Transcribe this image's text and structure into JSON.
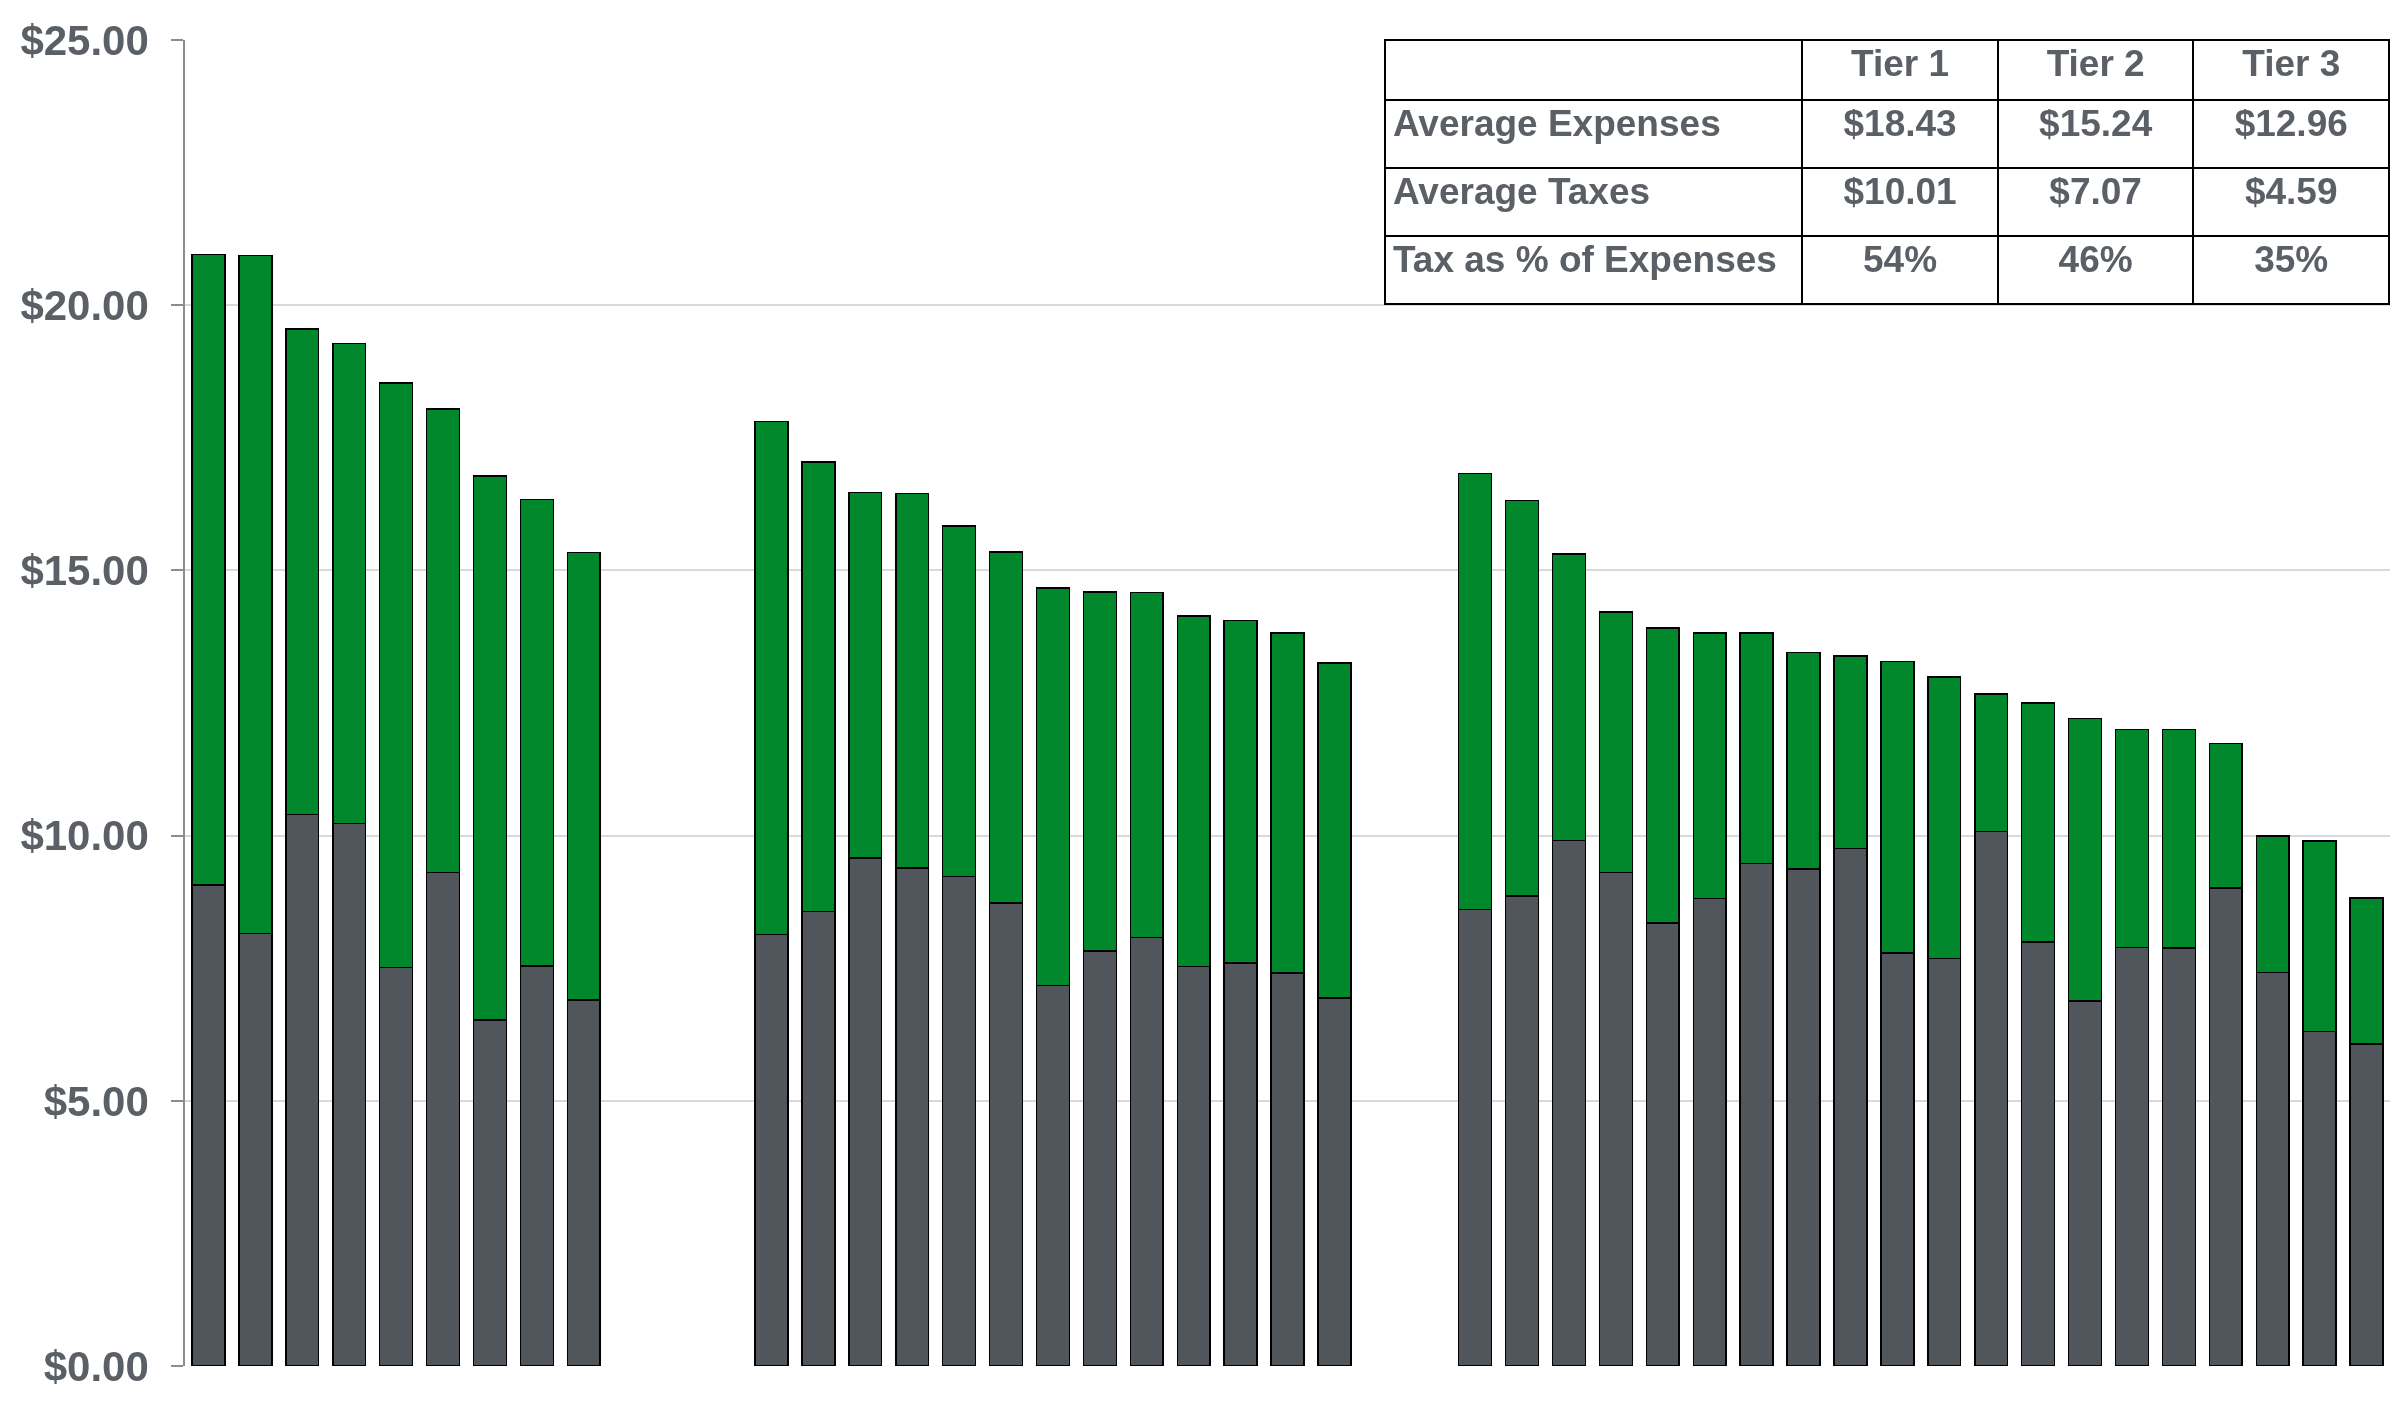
{
  "chart_data": {
    "type": "bar",
    "stacked": true,
    "categories": [
      null,
      null,
      null,
      null,
      null,
      null,
      null,
      null,
      null,
      null,
      null,
      null,
      null,
      null,
      null,
      null,
      null,
      null,
      null,
      null,
      null,
      null,
      null,
      null,
      null,
      null,
      null,
      null,
      null,
      null,
      null,
      null,
      null,
      null,
      null,
      null,
      null,
      null,
      null,
      null,
      null,
      null,
      null,
      null,
      null,
      null,
      null
    ],
    "series": [
      {
        "color": "#51565d",
        "values": [
          9.07,
          8.15,
          10.4,
          10.23,
          7.51,
          9.3,
          6.52,
          7.54,
          6.9,
          null,
          null,
          null,
          8.14,
          8.57,
          9.58,
          9.39,
          9.23,
          8.73,
          7.17,
          7.82,
          8.08,
          7.53,
          7.6,
          7.41,
          6.94,
          null,
          null,
          8.61,
          8.86,
          9.91,
          9.3,
          8.35,
          8.81,
          9.47,
          9.37,
          9.76,
          7.79,
          7.68,
          10.08,
          7.99,
          6.88,
          7.89,
          7.88,
          9.01,
          7.42,
          6.31,
          6.07
        ]
      },
      {
        "color": "#01882c",
        "values": [
          11.89,
          12.79,
          9.15,
          9.05,
          11.02,
          8.74,
          10.26,
          8.8,
          8.44,
          null,
          null,
          null,
          9.67,
          8.47,
          6.89,
          7.06,
          6.61,
          6.62,
          7.5,
          6.77,
          6.5,
          6.61,
          6.46,
          6.41,
          6.31,
          null,
          null,
          8.22,
          7.46,
          5.4,
          4.92,
          5.56,
          5.01,
          4.35,
          4.08,
          3.63,
          5.49,
          5.31,
          2.59,
          4.51,
          5.33,
          4.11,
          4.12,
          2.73,
          2.57,
          3.59,
          2.75
        ]
      }
    ],
    "ylim": [
      0,
      25
    ],
    "yticks": [
      {
        "value": 0,
        "label": "$0.00"
      },
      {
        "value": 5,
        "label": "$5.00"
      },
      {
        "value": 10,
        "label": "$10.00"
      },
      {
        "value": 15,
        "label": "$15.00"
      },
      {
        "value": 20,
        "label": "$20.00"
      },
      {
        "value": 25,
        "label": "$25.00"
      }
    ],
    "grid": "y",
    "annotations": [
      "Tier 1",
      "Tier 2",
      "Tier 3",
      "Average Expenses",
      "$18.43",
      "$15.24",
      "$12.96",
      "Average Taxes",
      "$10.01",
      "$7.07",
      "$4.59",
      "Tax as % of Expenses",
      "54%",
      "46%",
      "35%"
    ]
  }
}
